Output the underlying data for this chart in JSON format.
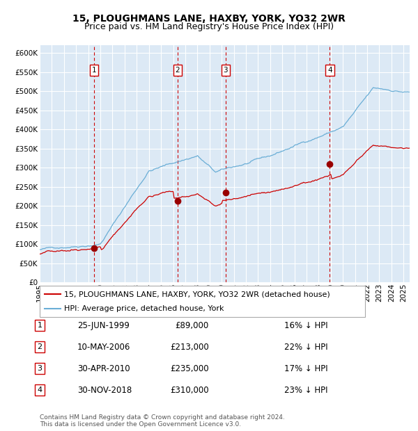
{
  "title": "15, PLOUGHMANS LANE, HAXBY, YORK, YO32 2WR",
  "subtitle": "Price paid vs. HM Land Registry's House Price Index (HPI)",
  "ylim": [
    0,
    620000
  ],
  "yticks": [
    0,
    50000,
    100000,
    150000,
    200000,
    250000,
    300000,
    350000,
    400000,
    450000,
    500000,
    550000,
    600000
  ],
  "xlim_start": 1995.0,
  "xlim_end": 2025.5,
  "background_color": "#dce9f5",
  "grid_color": "#ffffff",
  "hpi_line_color": "#6aaed6",
  "price_line_color": "#cc0000",
  "marker_color": "#990000",
  "dashed_line_color": "#cc0000",
  "purchases": [
    {
      "label": "1",
      "date_str": "25-JUN-1999",
      "price_str": "£89,000",
      "hpi_str": "16% ↓ HPI",
      "year": 1999.48,
      "price": 89000
    },
    {
      "label": "2",
      "date_str": "10-MAY-2006",
      "price_str": "£213,000",
      "hpi_str": "22% ↓ HPI",
      "year": 2006.36,
      "price": 213000
    },
    {
      "label": "3",
      "date_str": "30-APR-2010",
      "price_str": "£235,000",
      "hpi_str": "17% ↓ HPI",
      "year": 2010.33,
      "price": 235000
    },
    {
      "label": "4",
      "date_str": "30-NOV-2018",
      "price_str": "£310,000",
      "hpi_str": "23% ↓ HPI",
      "year": 2018.92,
      "price": 310000
    }
  ],
  "legend_line1": "15, PLOUGHMANS LANE, HAXBY, YORK, YO32 2WR (detached house)",
  "legend_line2": "HPI: Average price, detached house, York",
  "footer": "Contains HM Land Registry data © Crown copyright and database right 2024.\nThis data is licensed under the Open Government Licence v3.0.",
  "title_fontsize": 10,
  "subtitle_fontsize": 9,
  "tick_fontsize": 7.5,
  "legend_fontsize": 8,
  "footer_fontsize": 6.5
}
